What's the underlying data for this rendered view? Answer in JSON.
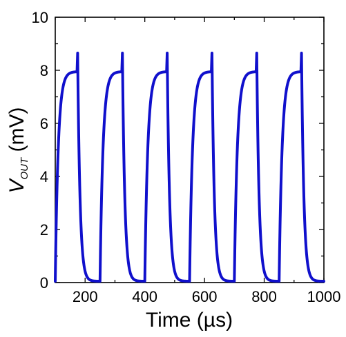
{
  "chart_data": {
    "type": "line",
    "title": "",
    "xlabel": "Time (µs)",
    "ylabel": "V_OUT (mV)",
    "ylabel_parts": {
      "main": "V",
      "sub": "OUT",
      "unit": " (mV)"
    },
    "xlim": [
      100,
      1000
    ],
    "ylim": [
      0,
      10
    ],
    "xticks": [
      200,
      400,
      600,
      800,
      1000
    ],
    "yticks": [
      0,
      2,
      4,
      6,
      8,
      10
    ],
    "xtick_labels": [
      "200",
      "400",
      "600",
      "800",
      "1000"
    ],
    "ytick_labels": [
      "0",
      "2",
      "4",
      "6",
      "8",
      "10"
    ],
    "grid": false,
    "legend": "none",
    "series": [
      {
        "color": "#1010cc",
        "period_us": 150,
        "pulses": [
          {
            "rise_start": 100,
            "peak": 175
          },
          {
            "rise_start": 250,
            "peak": 325
          },
          {
            "rise_start": 400,
            "peak": 475
          },
          {
            "rise_start": 550,
            "peak": 625
          },
          {
            "rise_start": 700,
            "peak": 775
          },
          {
            "rise_start": 850,
            "peak": 925
          }
        ],
        "plateau": 7.95,
        "spike_peak": 8.65,
        "baseline": 0.05
      }
    ]
  }
}
